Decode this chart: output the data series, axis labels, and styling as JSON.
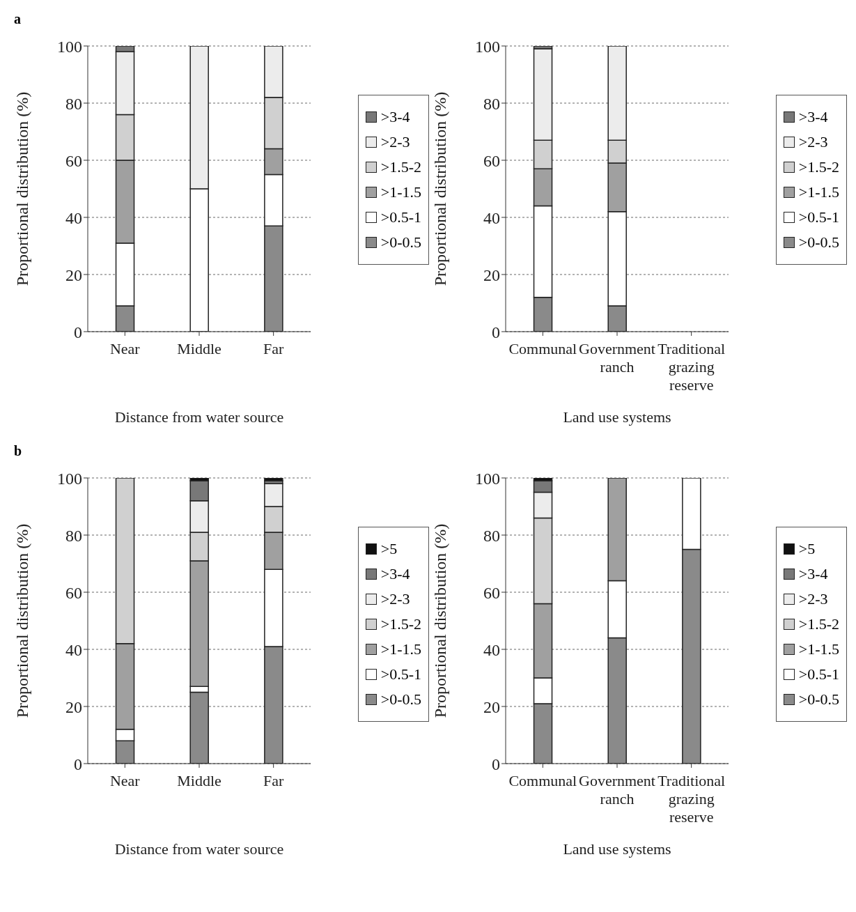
{
  "chart_data": [
    {
      "type": "bar",
      "stacked": true,
      "annotations": [
        "a"
      ],
      "xlabel": "Distance from water source",
      "ylabel": "Proportional distribution (%)",
      "categories": [
        "Near",
        "Middle",
        "Far"
      ],
      "ylim": [
        0,
        100
      ],
      "yticks": [
        0,
        20,
        40,
        60,
        80,
        100
      ],
      "grid": "y",
      "legend": "right",
      "series": [
        {
          "name": ">0-0.5",
          "color": "#8a8a8a",
          "values": [
            9,
            0,
            37
          ]
        },
        {
          "name": ">0.5-1",
          "color": "#ffffff",
          "values": [
            22,
            50,
            18
          ]
        },
        {
          "name": ">1-1.5",
          "color": "#a0a0a0",
          "values": [
            29,
            0,
            9
          ]
        },
        {
          "name": ">1.5-2",
          "color": "#d0d0d0",
          "values": [
            16,
            0,
            18
          ]
        },
        {
          "name": ">2-3",
          "color": "#ececec",
          "values": [
            22,
            50,
            18
          ]
        },
        {
          "name": ">3-4",
          "color": "#787878",
          "values": [
            2,
            0,
            0
          ]
        }
      ]
    },
    {
      "type": "bar",
      "stacked": true,
      "xlabel": "Land use systems",
      "ylabel": "Proportional distribution (%)",
      "categories": [
        "Communal",
        "Government ranch",
        "Traditional grazing reserve"
      ],
      "ylim": [
        0,
        100
      ],
      "yticks": [
        0,
        20,
        40,
        60,
        80,
        100
      ],
      "grid": "y",
      "legend": "right",
      "series": [
        {
          "name": ">0-0.5",
          "color": "#8a8a8a",
          "values": [
            12,
            9,
            null
          ]
        },
        {
          "name": ">0.5-1",
          "color": "#ffffff",
          "values": [
            32,
            33,
            null
          ]
        },
        {
          "name": ">1-1.5",
          "color": "#a0a0a0",
          "values": [
            13,
            17,
            null
          ]
        },
        {
          "name": ">1.5-2",
          "color": "#d0d0d0",
          "values": [
            10,
            8,
            null
          ]
        },
        {
          "name": ">2-3",
          "color": "#ececec",
          "values": [
            32,
            33,
            null
          ]
        },
        {
          "name": ">3-4",
          "color": "#787878",
          "values": [
            1,
            0,
            null
          ]
        }
      ]
    },
    {
      "type": "bar",
      "stacked": true,
      "annotations": [
        "b"
      ],
      "xlabel": "Distance from water source",
      "ylabel": "Proportional distribution (%)",
      "categories": [
        "Near",
        "Middle",
        "Far"
      ],
      "ylim": [
        0,
        100
      ],
      "yticks": [
        0,
        20,
        40,
        60,
        80,
        100
      ],
      "grid": "y",
      "legend": "right",
      "series": [
        {
          "name": ">0-0.5",
          "color": "#8a8a8a",
          "values": [
            8,
            25,
            41
          ]
        },
        {
          "name": ">0.5-1",
          "color": "#ffffff",
          "values": [
            4,
            2,
            27
          ]
        },
        {
          "name": ">1-1.5",
          "color": "#a0a0a0",
          "values": [
            30,
            44,
            13
          ]
        },
        {
          "name": ">1.5-2",
          "color": "#d0d0d0",
          "values": [
            58,
            10,
            9
          ]
        },
        {
          "name": ">2-3",
          "color": "#ececec",
          "values": [
            0,
            11,
            8
          ]
        },
        {
          "name": ">3-4",
          "color": "#787878",
          "values": [
            0,
            7,
            1
          ]
        },
        {
          "name": ">5",
          "color": "#111111",
          "values": [
            0,
            1,
            1
          ]
        }
      ]
    },
    {
      "type": "bar",
      "stacked": true,
      "xlabel": "Land use systems",
      "ylabel": "Proportional distribution (%)",
      "categories": [
        "Communal",
        "Government ranch",
        "Traditional grazing reserve"
      ],
      "ylim": [
        0,
        100
      ],
      "yticks": [
        0,
        20,
        40,
        60,
        80,
        100
      ],
      "grid": "y",
      "legend": "right",
      "series": [
        {
          "name": ">0-0.5",
          "color": "#8a8a8a",
          "values": [
            21,
            44,
            75
          ]
        },
        {
          "name": ">0.5-1",
          "color": "#ffffff",
          "values": [
            9,
            20,
            25
          ]
        },
        {
          "name": ">1-1.5",
          "color": "#a0a0a0",
          "values": [
            26,
            36,
            0
          ]
        },
        {
          "name": ">1.5-2",
          "color": "#d0d0d0",
          "values": [
            30,
            0,
            0
          ]
        },
        {
          "name": ">2-3",
          "color": "#ececec",
          "values": [
            9,
            0,
            0
          ]
        },
        {
          "name": ">3-4",
          "color": "#787878",
          "values": [
            4,
            0,
            0
          ]
        },
        {
          "name": ">5",
          "color": "#111111",
          "values": [
            1,
            0,
            0
          ]
        }
      ]
    }
  ]
}
